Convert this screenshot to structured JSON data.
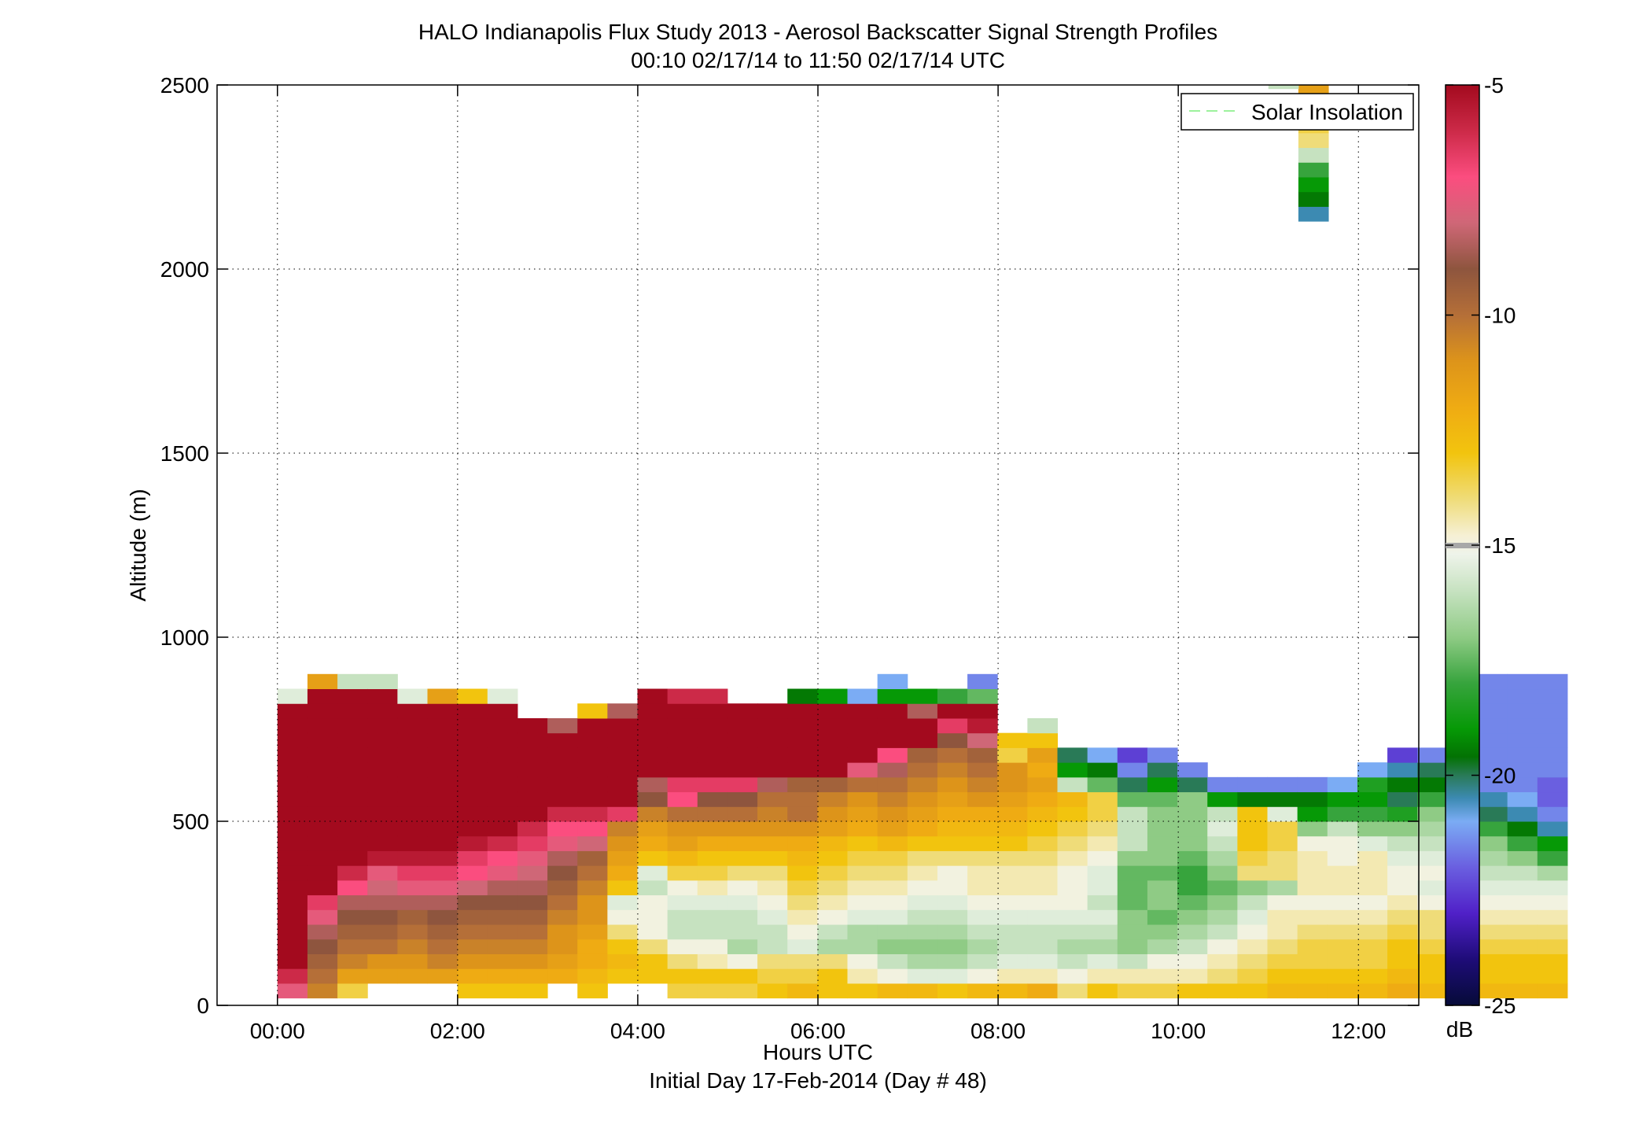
{
  "chart_data": {
    "type": "heatmap",
    "title": "HALO Indianapolis Flux Study 2013 - Aerosol Backscatter Signal Strength Profiles",
    "subtitle": "00:10 02/17/14 to 11:50 02/17/14  UTC",
    "xlabel": "Hours UTC",
    "xlabel2": "Initial Day 17-Feb-2014 (Day # 48)",
    "ylabel": "Altitude (m)",
    "xlim": [
      -0.67,
      12.67
    ],
    "ylim": [
      0,
      2500
    ],
    "grid": true,
    "x_ticks": [
      0,
      2,
      4,
      6,
      8,
      10,
      12
    ],
    "x_tick_labels": [
      "00:00",
      "02:00",
      "04:00",
      "06:00",
      "08:00",
      "10:00",
      "12:00"
    ],
    "y_ticks": [
      0,
      500,
      1000,
      1500,
      2000,
      2500
    ],
    "y_tick_labels": [
      "0",
      "500",
      "1000",
      "1500",
      "2000",
      "2500"
    ],
    "legend": {
      "entries": [
        "Solar Insolation"
      ],
      "position": "top-right",
      "color": "#9cf29c"
    },
    "colorbar": {
      "label": "dB",
      "range": [
        -25,
        -5
      ],
      "ticks": [
        -5,
        -10,
        -15,
        -20,
        -25
      ],
      "tick_labels": [
        "-5",
        "-10",
        "-15",
        "-20",
        "-25"
      ]
    },
    "cells": {
      "x_start": 0.167,
      "dx": 0.333,
      "y_start": 40,
      "dy": 40,
      "columns": [
        "-7.5 -6 -5 -5 -5 -5 -5 -5 -5 -5 -5 -5 -5 -5 -5 -5 -5 -5 -5 -5 -15.5",
        "-10.5 -10 -9.5 -9 -8.5 -7.5 -6.5 -5 -5 -5 -5 -5 -5 -5 -5 -5 -5 -5 -5 -5 -5 -11.5",
        "-13.5 -11.5 -10.5 -10 -9.5 -9 -8.5 -7 -6 -5 -5 -5 -5 -5 -5 -5 -5 -5 -5 -5 -5 -16",
        "null -11.5 -11 -10 -9.5 -9 -8.5 -8 -7.5 -5.5 -5 -5 -5 -5 -5 -5 -5 -5 -5 -5 -5 -16",
        "null -11.5 -11 -10.5 -10 -9.5 -8.5 -7.5 -6.5 -5.5 -5 -5 -5 -5 -5 -5 -5 -5 -5 -5 -15.5",
        "null -11.5 -10.5 -10 -9.5 -9 -8.5 -7.5 -6.5 -5.5 -5 -5 -5 -5 -5 -5 -5 -5 -5 -5 -11.5",
        "-13 -12 -11 -10.5 -10 -9.5 -9 -8 -7 -6.5 -5.5 -5 -5 -5 -5 -5 -5 -5 -5 -5 -13",
        "-13 -12 -11 -10.5 -10 -9.5 -9 -8.5 -7.5 -7 -6 -5 -5 -5 -5 -5 -5 -5 -5 -5 -15.5",
        "-13 -12 -11 -10.5 -10 -9.5 -9 -8.5 -8 -7.5 -6.5 -6 -5 -5 -5 -5 -5 -5 -5",
        "null -12 -11.5 -11 -11 -10.5 -10 -9.5 -9 -8.5 -7.5 -7 -6 -5 -5 -5 -5 -5 -8.5",
        "-13 -12.5 -12 -12 -11.5 -11 -11 -10.5 -10 -9.5 -8 -7 -6 -5 -5 -5 -5 -5 -5 -13",
        "null -13 -12.5 -13 -14 -15 -15.5 -13 -12 -11.5 -11 -10.5 -6.5 -5 -5 -5 -5 -5 -5 -8.5",
        "null -13 -13 -14 -15 -15 -15 -16 -15.5 -13 -12 -11.5 -10.5 -9 -8.5 -5 -5 -5 -5 -5 -5",
        "-13.5 -13 -14 -15 -16 -16 -15.5 -15 -13.5 -12.5 -11.5 -11 -10 -7 -6.5 -5 -5 -5 -5 -5 -6",
        "-13.5 -13 -14.5 -15 -16 -16 -15.5 -14.5 -13.5 -13 -12 -11 -10 -9 -6.5 -5 -5 -5 -5 -5 -6",
        "-13.5 -13 -15 -16.5 -16 -16 -15.5 -15 -14 -13 -12 -11 -10 -9 -6.5 -5 -5 -5 -5 -5",
        "-13 -13.5 -14 -16 -16 -15.5 -15 -14.5 -14 -13 -12 -11 -10.5 -10 -8.5 -5 -5 -5 -5 -5",
        "-12.5 -13.5 -14 -15.5 -15 -14.5 -14 -13.5 -13 -12.5 -12 -11 -10 -10 -9.5 -5 -5 -5 -5 -5 -19.5",
        "-13 -13 -14 -16.5 -16 -15 -14.5 -14 -13.5 -13 -12.5 -11.5 -11 -10.5 -9.5 -5 -5 -5 -5 -5 -19",
        "-13 -14.5 -15 -16.5 -16.5 -15.5 -15 -14.5 -14 -13.5 -13 -12 -11.5 -11 -10 -7.5 -5 -5 -5 -5 -21",
        "-12.5 -15 -16 -17 -16.5 -15.5 -15 -14.5 -14 -13.5 -12.5 -11.5 -11 -10.5 -10 -8.5 -7 -5 -5 -5 -19 -21",
        "-12.5 -15.5 -16.5 -17 -16.5 -16 -15.5 -15 -14.5 -14 -13 -12 -11.5 -11 -10.5 -10 -9.5 -5 -5 -8.5 -19",
        "-13 -15.5 -16.5 -17 -16.5 -16 -15.5 -15 -15 -14 -13 -12.5 -12 -11.5 -11 -10.5 -10 -9 -6.5 -5 -18",
        "-12.5 -15 -16 -16.5 -16 -15.5 -15 -14.5 -14.5 -14 -13 -12.5 -12 -11 -10.5 -10 -9.5 -8 -5.5 -5 -17.5 -21.5",
        "-12.5 -14.5 -15.5 -16 -16 -15.5 -15 -14.5 -14.5 -14 -13 -12.5 -12 -11.5 -11 -11 -13.5 -13",
        "-12 -14.5 -15.5 -16 -16 -15.5 -15 -14.5 -14.5 -14 -13.5 -13 -12.5 -12 -11.5 -12 -11.5 -13 -16",
        "-14 -15 -16 -16.5 -16 -15.5 -15 -15 -15 -14.5 -14 -13.5 -13 -12.5 -16 -19 -20",
        "-13 -14.5 -15.5 -16.5 -16 -15.5 -16 -15.5 -15.5 -15 -14.5 -14 -13.5 -13.5 -17.5 -19.5 -21",
        "-13.5 -14.5 -16 -17 -17 -17 -17.5 -17.5 -17.5 -17 -16 -16 -16 -17.5 -20 -21.5 -22.5",
        "-13.5 -14.5 -15 -16.5 -17 -17.5 -17 -17 -17.5 -17 -17 -17 -17 -17.5 -19 -20 -21.5",
        "-13 -14.5 -15 -16 -16.5 -17 -17.5 -18 -18 -17.5 -17 -17 -17 -17 -20 -21.5",
        "-13 -14 -14.5 -15 -16 -16.5 -17 -17.5 -17 -16.5 -16 -15.5 -16 -19 -21.5",
        "-13 -13.5 -14 -14.5 -15 -15.5 -16 -17 -14 -13.5 -13 -13 -13 -19.5 -21.5",
        "-12.5 -13 -13.5 -14 -14.5 -14.5 -15 -16.5 -14 -14 -13.5 -13.5 -15.5 -19.5 -21.5",
        "-12.5 -13 -13.5 -13.5 -14 -14.5 -15 -14.5 -14.5 -14.5 -15 -17 -19 -19.5 -21.5",
        "-12.5 -13 -13.5 -13.5 -14 -14.5 -15 -14.5 -14.5 -15 -15 -16 -18 -19 -21",
        "-12.5 -13 -13.5 -13.5 -14 -14.5 -15 -14.5 -14.5 -14.5 -15.5 -17 -18 -19 -18.5 -21",
        "-12 -12.5 -13 -13 -13.5 -14 -14.5 -15 -15 -15.5 -16 -17 -18.5 -20 -19.5 -20.5 -22.5",
        "-12.5 -13 -13 -13.5 -14 -14 -15 -15.5 -15 -15.5 -16 -16.5 -17 -18 -19.5 -20 -21.5",
        "-12.5 -13 -13 -13.5 -13.5 -14.5 -15.5 -15.5 -16 -16.5 -17 -17.5 -18 -19 -20 -21",
        "-12.5 -13 -13 -13.5 -14 -14.5 -15 -15.5 -16 -16.5 -17 -18 -20 -20.5 -21.5 -21.5 -21.5 -21.5 -21.5 -21.5 -21.5 -21.5 -21.5 -21.5 -21.5 -21.5 -21.5 -21.5 -21.5 -21.5 -21.5 -21.5 -21.5 -21.5 -21.5 -21.5 -21.5 -21.5 -21.5 -21.5 -21.5 -21.5 -21.5 -21.5 -21.5 -21.5 -21.5 -21.5 -21.5 -21.5 -21.5 -21.5 -21.5 -21.5 -21.5 -21.5 -16",
        "-12.5 -13 -13 -13.5 -14 -14.5 -15 -15.5 -16 -17 -18 -19.5 -20.5 -21 -21.5 -21.5 -21.5 -21.5 -21.5 -21.5 -21.5 -21.5 -21.5 -21.5 -21.5 -21.5 -21.5 -21.5 -21.5 -21.5 -21.5 -21.5 -21.5 -21.5 -21.5 -21.5 -21.5 -21.5 -21.5 -21.5 -21.5 -21.5 -21.5 -21.5 -21.5 -21.5 -21.5 -21.5 -21.5 -21.5 -21.5 -21.5 -21.5 -21.5 -21.5 -21.5 -11.5",
        "-12.5 -13 -13 -13.5 -14 -14.5 -15 -15.5 -16.5 -18 -19 -20.5 -21.5 -22 -22 -21.5 -21.5 -21.5 -21.5 -21.5 -21.5 -21.5 -21.5 -21.5 -21.5 -21.5 -21.5 -21.5 -21.5 -21.5 -21.5 -21.5 -21.5 -21.5 -21.5 -21.5 -21.5 -21.5 -21.5 -21.5 -21.5 -21.5 -21.5 -21.5 -21.5 -21.5 -21.5 -21.5 -21.5 -21.5 -21.5 -21.5 -21.5 -21.5 -21.5 -21.5"
      ],
      "upper_column_x": 11.5,
      "upper_column": [
        {
          "y": 2150,
          "dB": -20.5
        },
        {
          "y": 2190,
          "dB": -19.5
        },
        {
          "y": 2230,
          "dB": -19
        },
        {
          "y": 2270,
          "dB": -18
        },
        {
          "y": 2310,
          "dB": -16
        },
        {
          "y": 2350,
          "dB": -14
        },
        {
          "y": 2390,
          "dB": -13.5
        },
        {
          "y": 2430,
          "dB": -13
        },
        {
          "y": 2470,
          "dB": -12
        },
        {
          "y": 2490,
          "dB": -11.5
        }
      ],
      "upper_extra": [
        {
          "x": 11.167,
          "y": 2490,
          "dB": -16
        }
      ]
    }
  }
}
